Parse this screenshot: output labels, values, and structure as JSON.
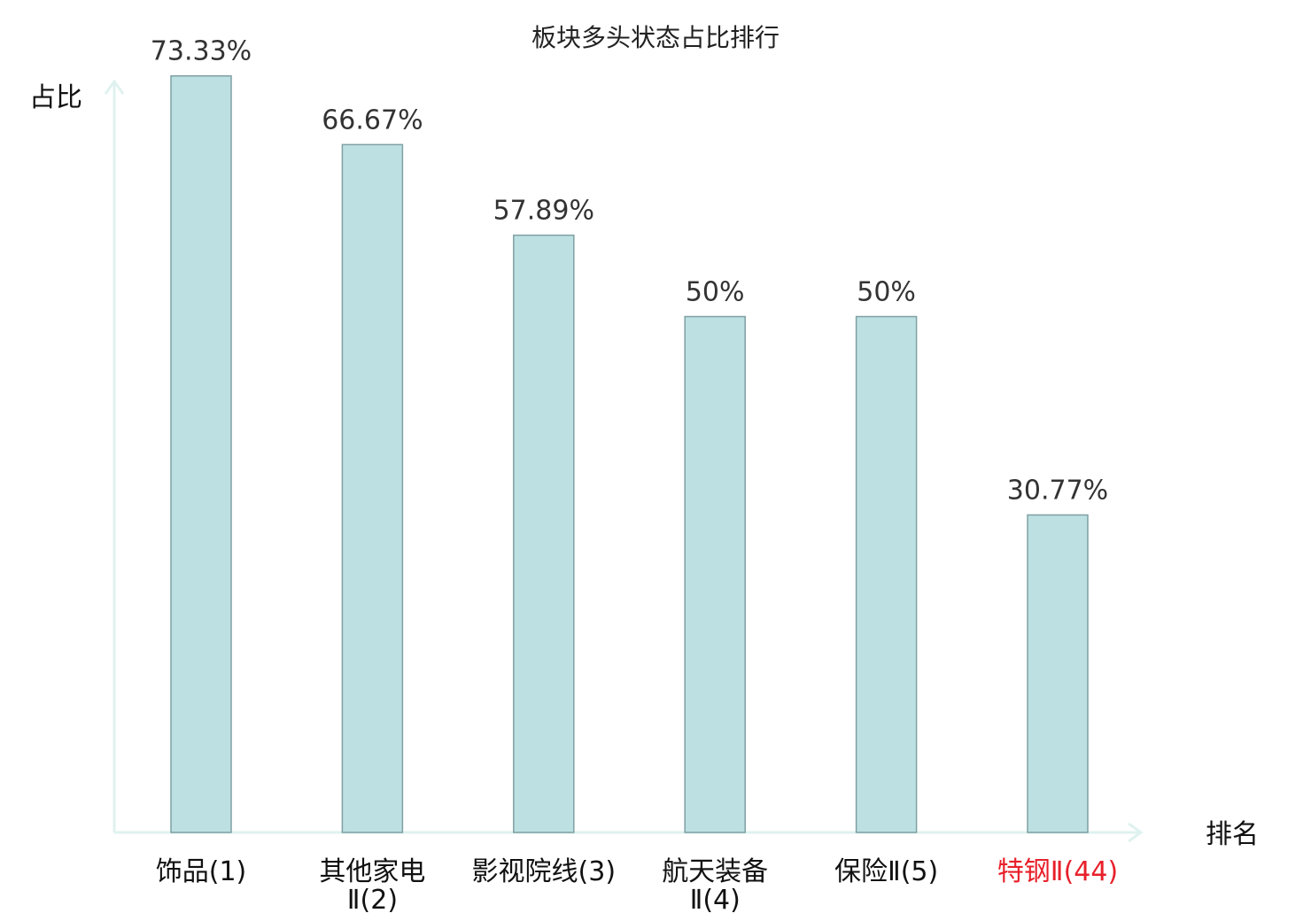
{
  "chart_data": {
    "type": "bar",
    "title": "板块多头状态占比排行",
    "ylabel": "占比",
    "xlabel": "排名",
    "ylim": [
      0,
      80
    ],
    "grid": false,
    "legend": "none",
    "categories": [
      {
        "lines": [
          "饰品(1)"
        ],
        "highlight": false
      },
      {
        "lines": [
          "其他家电",
          "Ⅱ(2)"
        ],
        "highlight": false
      },
      {
        "lines": [
          "影视院线(3)"
        ],
        "highlight": false
      },
      {
        "lines": [
          "航天装备",
          "Ⅱ(4)"
        ],
        "highlight": false
      },
      {
        "lines": [
          "保险Ⅱ(5)"
        ],
        "highlight": false
      },
      {
        "lines": [
          "特钢Ⅱ(44)"
        ],
        "highlight": true
      }
    ],
    "values": [
      73.33,
      66.67,
      57.89,
      50,
      50,
      30.77
    ],
    "value_labels": [
      "73.33%",
      "66.67%",
      "57.89%",
      "50%",
      "50%",
      "30.77%"
    ],
    "colors": {
      "bar_fill": "#bde0e3",
      "bar_stroke": "#7fa0a3",
      "axis": "#dff2ef",
      "label": "#111111",
      "highlight": "#e8202a",
      "value_text": "#333333"
    }
  }
}
